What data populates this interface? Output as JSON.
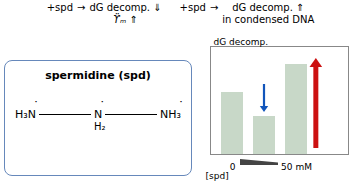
{
  "chart_data": {
    "type": "bar",
    "categories": [
      "0",
      null,
      "50 mM"
    ],
    "values": [
      0.62,
      0.38,
      0.9
    ],
    "color": "#c8d8c8",
    "xlabel": "[spd]",
    "ylabel": "dG decomp.",
    "ylim": [
      0,
      1.08
    ],
    "tick_labels": "x",
    "annotations": [
      "+spd",
      "→",
      "dG decomp. ⇓",
      "ϔₘ ⇑",
      "+spd",
      "→",
      "dG decomp. ⇑",
      "in condensed DNA",
      "spermidine (spd)",
      "H₃N",
      "˙",
      "N",
      "˙",
      "H₂",
      "NH₃",
      "˙"
    ]
  }
}
